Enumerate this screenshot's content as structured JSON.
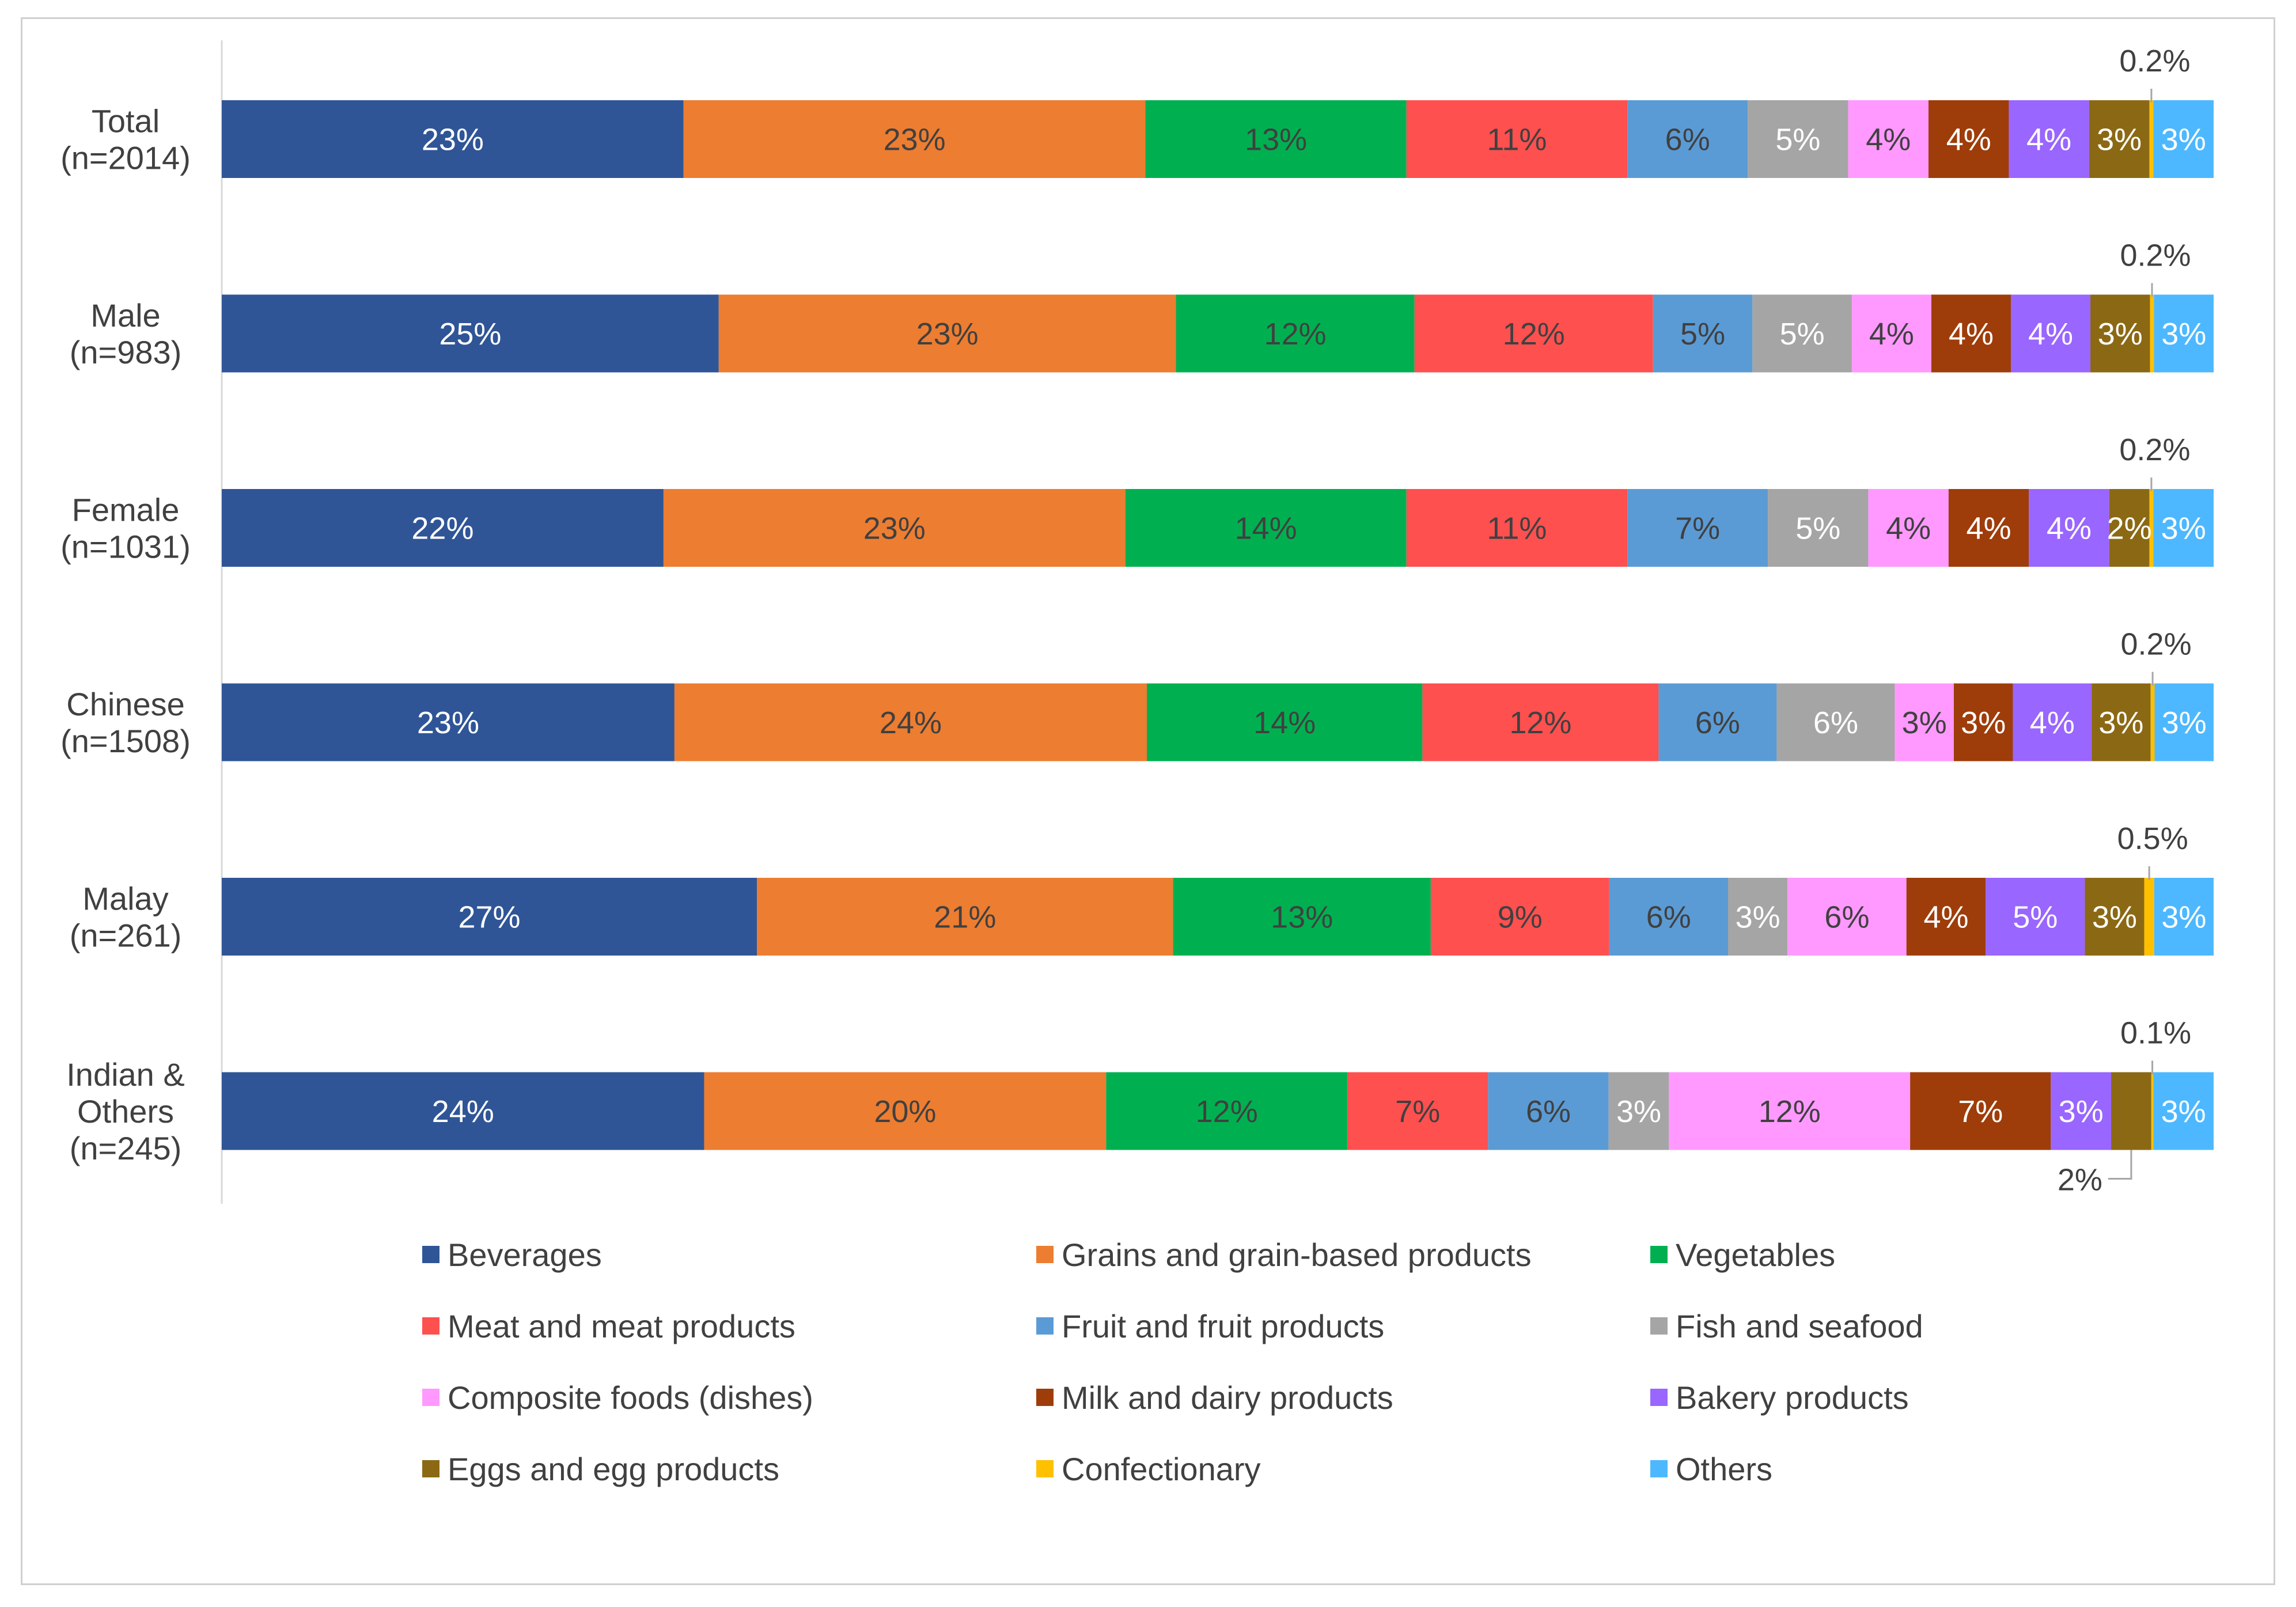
{
  "chart_data": {
    "type": "bar",
    "orientation": "horizontal",
    "stacked": true,
    "percent_stacked": true,
    "categories": [
      [
        "Total",
        "(n=2014)"
      ],
      [
        "Male",
        "(n=983)"
      ],
      [
        "Female",
        "(n=1031)"
      ],
      [
        "Chinese",
        "(n=1508)"
      ],
      [
        "Malay",
        "(n=261)"
      ],
      [
        "Indian &",
        "Others",
        "(n=245)"
      ]
    ],
    "series": [
      {
        "name": "Beverages",
        "color": "#2F5597",
        "text_color": "#ffffff",
        "values": [
          23,
          25,
          22,
          23,
          27,
          24
        ],
        "labels": [
          "23%",
          "25%",
          "22%",
          "23%",
          "27%",
          "24%"
        ]
      },
      {
        "name": "Grains and grain-based products",
        "color": "#ED7D31",
        "text_color": "#404040",
        "values": [
          23,
          23,
          23,
          24,
          21,
          20
        ],
        "labels": [
          "23%",
          "23%",
          "23%",
          "24%",
          "21%",
          "20%"
        ]
      },
      {
        "name": "Vegetables",
        "color": "#00B050",
        "text_color": "#404040",
        "values": [
          13,
          12,
          14,
          14,
          13,
          12
        ],
        "labels": [
          "13%",
          "12%",
          "14%",
          "14%",
          "13%",
          "12%"
        ]
      },
      {
        "name": "Meat and meat products",
        "color": "#FF5050",
        "text_color": "#404040",
        "values": [
          11,
          12,
          11,
          12,
          9,
          7
        ],
        "labels": [
          "11%",
          "12%",
          "11%",
          "12%",
          "9%",
          "7%"
        ]
      },
      {
        "name": "Fruit and fruit products",
        "color": "#5B9BD5",
        "text_color": "#404040",
        "values": [
          6,
          5,
          7,
          6,
          6,
          6
        ],
        "labels": [
          "6%",
          "5%",
          "7%",
          "6%",
          "6%",
          "6%"
        ]
      },
      {
        "name": "Fish and seafood",
        "color": "#A5A5A5",
        "text_color": "#ffffff",
        "values": [
          5,
          5,
          5,
          6,
          3,
          3
        ],
        "labels": [
          "5%",
          "5%",
          "5%",
          "6%",
          "3%",
          "3%"
        ]
      },
      {
        "name": "Composite foods (dishes)",
        "color": "#FF99FF",
        "text_color": "#404040",
        "values": [
          4,
          4,
          4,
          3,
          6,
          12
        ],
        "labels": [
          "4%",
          "4%",
          "4%",
          "3%",
          "6%",
          "12%"
        ]
      },
      {
        "name": "Milk and dairy products",
        "color": "#9E3D0A",
        "text_color": "#ffffff",
        "values": [
          4,
          4,
          4,
          3,
          4,
          7
        ],
        "labels": [
          "4%",
          "4%",
          "4%",
          "3%",
          "4%",
          "7%"
        ]
      },
      {
        "name": "Bakery products",
        "color": "#9966FF",
        "text_color": "#ffffff",
        "values": [
          4,
          4,
          4,
          4,
          5,
          3
        ],
        "labels": [
          "4%",
          "4%",
          "4%",
          "4%",
          "5%",
          "3%"
        ]
      },
      {
        "name": "Eggs and egg products",
        "color": "#8B6914",
        "text_color": "#ffffff",
        "values": [
          3,
          3,
          2,
          3,
          3,
          2
        ],
        "labels": [
          "3%",
          "3%",
          "2%",
          "3%",
          "3%",
          "2%"
        ]
      },
      {
        "name": "Confectionary",
        "color": "#FFC000",
        "text_color": "#404040",
        "values": [
          0.2,
          0.2,
          0.2,
          0.2,
          0.5,
          0.1
        ],
        "labels": [
          "0.2%",
          "0.2%",
          "0.2%",
          "0.2%",
          "0.5%",
          "0.1%"
        ]
      },
      {
        "name": "Others",
        "color": "#4DB8FF",
        "text_color": "#ffffff",
        "values": [
          3,
          3,
          3,
          3,
          3,
          3
        ],
        "labels": [
          "3%",
          "3%",
          "3%",
          "3%",
          "3%",
          "3%"
        ]
      }
    ],
    "xlim": [
      0,
      100
    ],
    "grid": false,
    "legend": "bottom"
  }
}
